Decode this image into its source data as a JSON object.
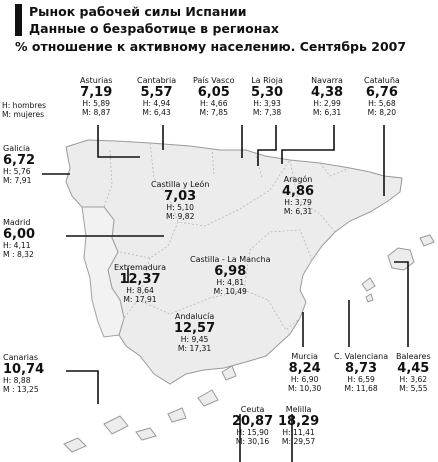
{
  "title": {
    "line1": "Рынок рабочей силы Испании",
    "line2": "Данные о безработице  в регионах",
    "line3": "% отношение к активному населению. Сентябрь 2007"
  },
  "legend": {
    "hombres": "H: hombres",
    "mujeres": "M: mujeres"
  },
  "regions": {
    "asturias": {
      "name": "Asturias",
      "total": "7,19",
      "h": "H: 5,89",
      "m": "M: 8,87"
    },
    "cantabria": {
      "name": "Cantabria",
      "total": "5,57",
      "h": "H: 4,94",
      "m": "M: 6,43"
    },
    "pais_vasco": {
      "name": "País Vasco",
      "total": "6,05",
      "h": "H: 4,66",
      "m": "M: 7,85"
    },
    "la_rioja": {
      "name": "La Rioja",
      "total": "5,30",
      "h": "H: 3,93",
      "m": "M: 7,38"
    },
    "navarra": {
      "name": "Navarra",
      "total": "4,38",
      "h": "H: 2,99",
      "m": "M: 6,31"
    },
    "cataluna": {
      "name": "Cataluña",
      "total": "6,76",
      "h": "H: 5,68",
      "m": "M: 8,20"
    },
    "galicia": {
      "name": "Galicia",
      "total": "6,72",
      "h": "H: 5,76",
      "m": "M: 7,91"
    },
    "castilla_leon": {
      "name": "Castilla y León",
      "total": "7,03",
      "h": "H: 5,10",
      "m": "M: 9,82"
    },
    "aragon": {
      "name": "Aragón",
      "total": "4,86",
      "h": "H: 3,79",
      "m": "M: 6,31"
    },
    "madrid": {
      "name": "Madrid",
      "total": "6,00",
      "h": "H: 4,11",
      "m": "M : 8,32"
    },
    "extremadura": {
      "name": "Extremadura",
      "total": "12,37",
      "h": "H: 8,64",
      "m": "M: 17,91"
    },
    "castilla_la_mancha": {
      "name": "Castilla - La Mancha",
      "total": "6,98",
      "h": "H: 4,81",
      "m": "M: 10,49"
    },
    "andalucia": {
      "name": "Andalucía",
      "total": "12,57",
      "h": "H: 9,45",
      "m": "M: 17,31"
    },
    "canarias": {
      "name": "Canarias",
      "total": "10,74",
      "h": "H: 8,88",
      "m": "M : 13,25"
    },
    "murcia": {
      "name": "Murcia",
      "total": "8,24",
      "h": "H: 6,90",
      "m": "M: 10,30"
    },
    "c_valenciana": {
      "name": "C. Valenciana",
      "total": "8,73",
      "h": "H: 6,59",
      "m": "M: 11,68"
    },
    "baleares": {
      "name": "Baleares",
      "total": "4,45",
      "h": "H: 3,62",
      "m": "M: 5,55"
    },
    "ceuta": {
      "name": "Ceuta",
      "total": "20,87",
      "h": "H: 15,90",
      "m": "M: 30,16"
    },
    "melilla": {
      "name": "Melilla",
      "total": "18,29",
      "h": "H: 11,41",
      "m": "M: 29,57"
    }
  }
}
